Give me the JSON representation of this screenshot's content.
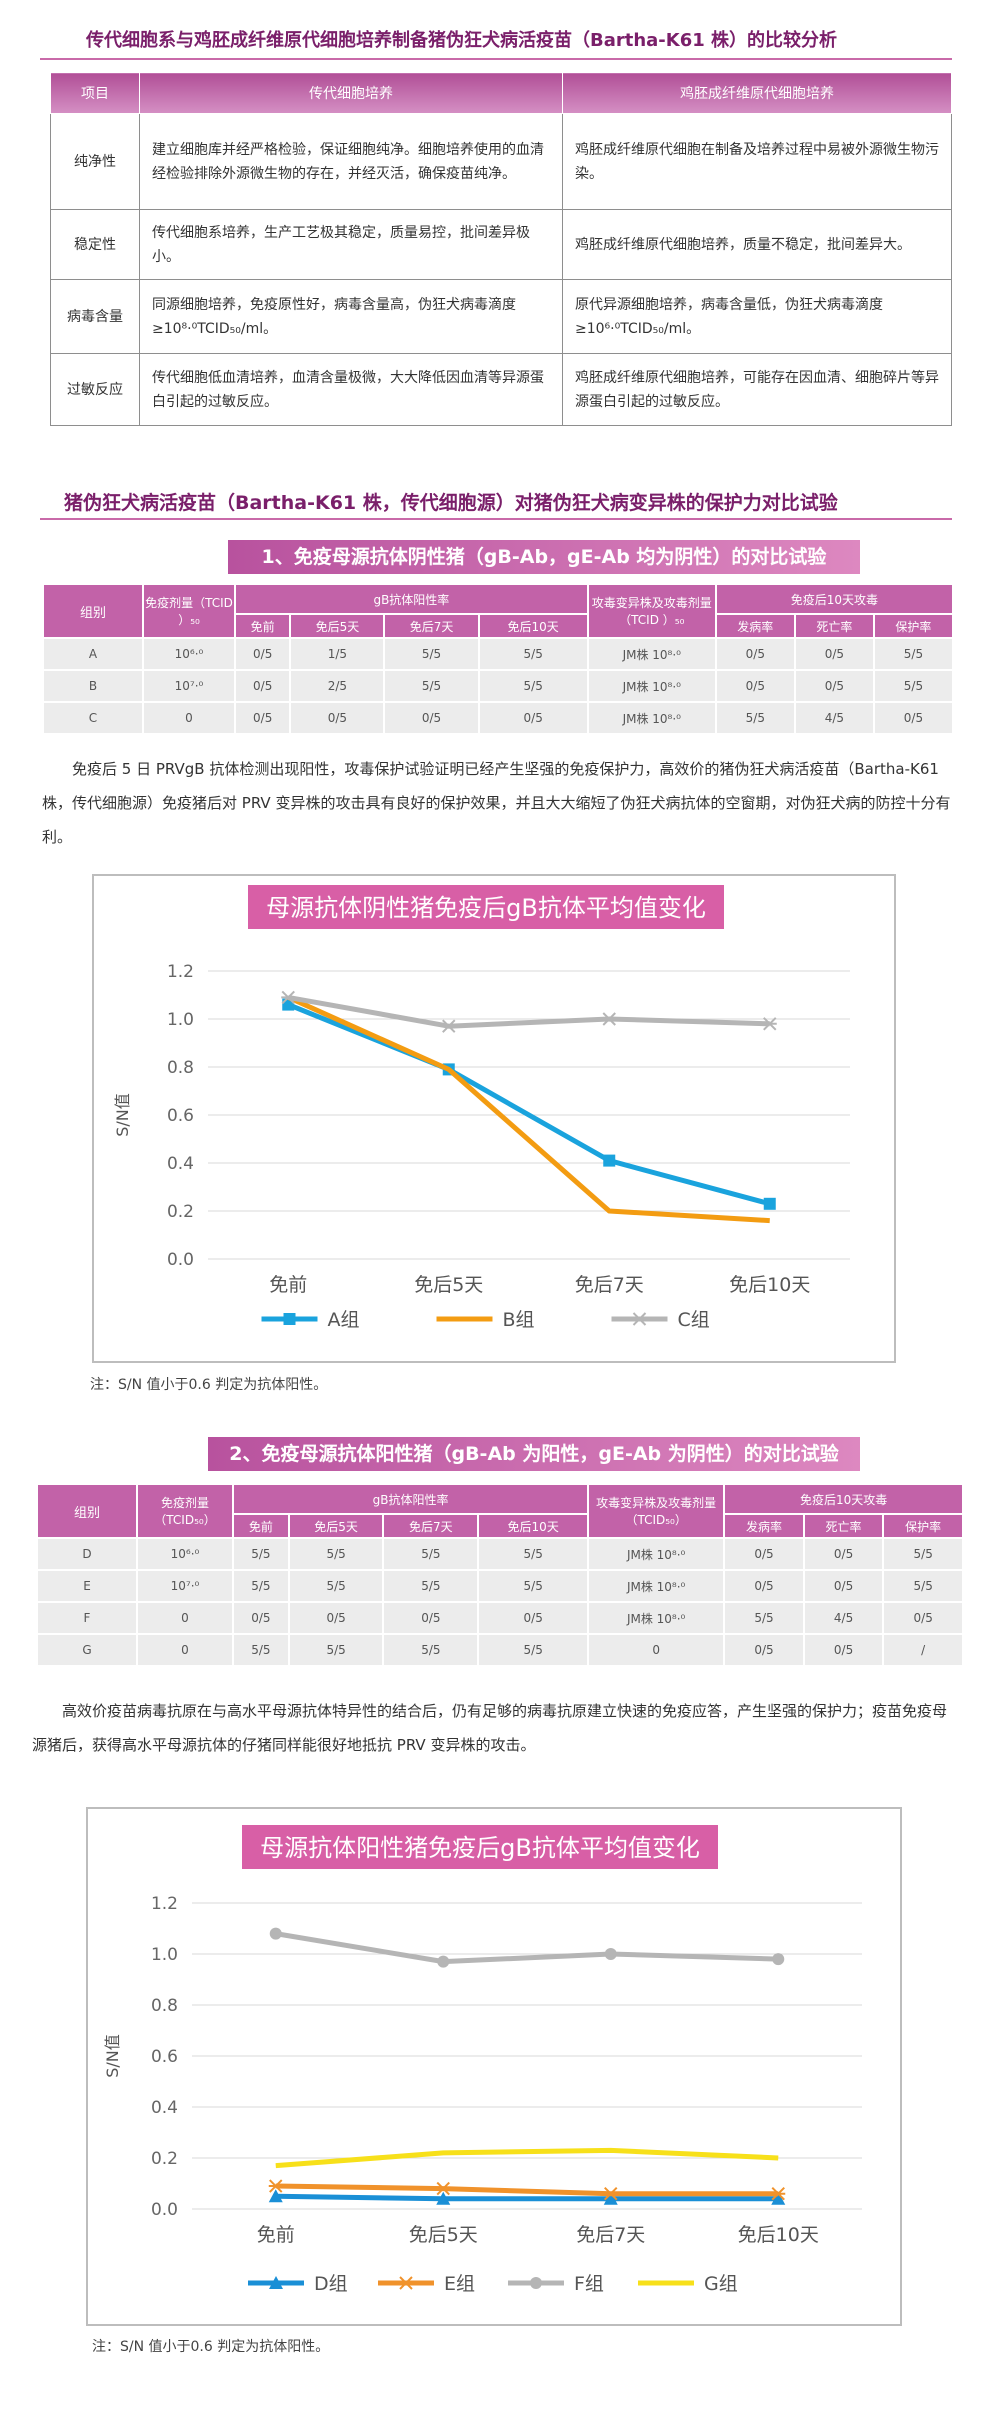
{
  "section1": {
    "title": "传代细胞系与鸡胚成纤维原代细胞培养制备猪伪狂犬病活疫苗（Bartha-K61 株）的比较分析",
    "headers": [
      "项目",
      "传代细胞培养",
      "鸡胚成纤维原代细胞培养"
    ],
    "rows": [
      {
        "item": "纯净性",
        "a": "建立细胞库并经严格检验，保证细胞纯净。细胞培养使用的血清经检验排除外源微生物的存在，并经灭活，确保疫苗纯净。",
        "b": "鸡胚成纤维原代细胞在制备及培养过程中易被外源微生物污染。"
      },
      {
        "item": "稳定性",
        "a": "传代细胞系培养，生产工艺极其稳定，质量易控，批间差异极小。",
        "b": "鸡胚成纤维原代细胞培养，质量不稳定，批间差异大。"
      },
      {
        "item": "病毒含量",
        "a": "同源细胞培养，免疫原性好，病毒含量高，伪狂犬病毒滴度≥10⁸·⁰TCID₅₀/ml。",
        "b": "原代异源细胞培养，病毒含量低，伪狂犬病毒滴度≥10⁶·⁰TCID₅₀/ml。"
      },
      {
        "item": "过敏反应",
        "a": "传代细胞低血清培养，血清含量极微，大大降低因血清等异源蛋白引起的过敏反应。",
        "b": "鸡胚成纤维原代细胞培养，可能存在因血清、细胞碎片等异源蛋白引起的过敏反应。"
      }
    ]
  },
  "section2": {
    "title": "猪伪狂犬病活疫苗（Bartha-K61 株，传代细胞源）对猪伪狂犬病变异株的保护力对比试验"
  },
  "trial1": {
    "band": "1、免疫母源抗体阴性猪（gB-Ab，gE-Ab 均为阴性）的对比试验",
    "h_group": "组别",
    "h_dose": "免疫剂量（TCID ）₅₀",
    "h_gb": "gB抗体阳性率",
    "gb_cols": [
      "免前",
      "免后5天",
      "免后7天",
      "免后10天"
    ],
    "h_challenge": "攻毒变异株及攻毒剂量（TCID ）₅₀",
    "h_after": "免疫后10天攻毒",
    "after_cols": [
      "发病率",
      "死亡率",
      "保护率"
    ],
    "rows": [
      [
        "A",
        "10⁶·⁰",
        "0/5",
        "1/5",
        "5/5",
        "5/5",
        "JM株 10⁸·⁰",
        "0/5",
        "0/5",
        "5/5"
      ],
      [
        "B",
        "10⁷·⁰",
        "0/5",
        "2/5",
        "5/5",
        "5/5",
        "JM株 10⁸·⁰",
        "0/5",
        "0/5",
        "5/5"
      ],
      [
        "C",
        "0",
        "0/5",
        "0/5",
        "0/5",
        "0/5",
        "JM株 10⁸·⁰",
        "5/5",
        "4/5",
        "0/5"
      ]
    ],
    "paragraph": "免疫后 5 日 PRVgB 抗体检测出现阳性，攻毒保护试验证明已经产生坚强的免疫保护力，高效价的猪伪狂犬病活疫苗（Bartha-K61 株，传代细胞源）免疫猪后对 PRV 变异株的攻击具有良好的保护效果，并且大大缩短了伪狂犬病抗体的空窗期，对伪狂犬病的防控十分有利。",
    "note": "注：S/N 值小于0.6 判定为抗体阳性。"
  },
  "trial2": {
    "band": "2、免疫母源抗体阳性猪（gB-Ab 为阳性，gE-Ab 为阴性）的对比试验",
    "h_group": "组别",
    "h_dose": "免疫剂量（TCID₅₀）",
    "h_gb": "gB抗体阳性率",
    "gb_cols": [
      "免前",
      "免后5天",
      "免后7天",
      "免后10天"
    ],
    "h_challenge": "攻毒变异株及攻毒剂量（TCID₅₀）",
    "h_after": "免疫后10天攻毒",
    "after_cols": [
      "发病率",
      "死亡率",
      "保护率"
    ],
    "rows": [
      [
        "D",
        "10⁶·⁰",
        "5/5",
        "5/5",
        "5/5",
        "5/5",
        "JM株 10⁸·⁰",
        "0/5",
        "0/5",
        "5/5"
      ],
      [
        "E",
        "10⁷·⁰",
        "5/5",
        "5/5",
        "5/5",
        "5/5",
        "JM株 10⁸·⁰",
        "0/5",
        "0/5",
        "5/5"
      ],
      [
        "F",
        "0",
        "0/5",
        "0/5",
        "0/5",
        "0/5",
        "JM株 10⁸·⁰",
        "5/5",
        "4/5",
        "0/5"
      ],
      [
        "G",
        "0",
        "5/5",
        "5/5",
        "5/5",
        "5/5",
        "0",
        "0/5",
        "0/5",
        "/"
      ]
    ],
    "paragraph": "高效价疫苗病毒抗原在与高水平母源抗体特异性的结合后，仍有足够的病毒抗原建立快速的免疫应答，产生坚强的保护力；疫苗免疫母源猪后，获得高水平母源抗体的仔猪同样能很好地抵抗 PRV 变异株的攻击。",
    "note": "注：S/N 值小于0.6 判定为抗体阳性。"
  },
  "chart_data": [
    {
      "type": "line",
      "title": "母源抗体阴性猪免疫后gB抗体平均值变化",
      "ylabel": "S/N值",
      "categories": [
        "免前",
        "免后5天",
        "免后7天",
        "免后10天"
      ],
      "ylim": [
        0.0,
        1.2
      ],
      "yticks": [
        "0.0",
        "0.2",
        "0.4",
        "0.6",
        "0.8",
        "1.0",
        "1.2"
      ],
      "grid": true,
      "legend": "bottom",
      "series": [
        {
          "name": "A组",
          "values": [
            1.06,
            0.79,
            0.41,
            0.23
          ],
          "color": "#1aa3dd",
          "marker": "square"
        },
        {
          "name": "B组",
          "values": [
            1.09,
            0.79,
            0.2,
            0.16
          ],
          "color": "#f39c12",
          "marker": "line"
        },
        {
          "name": "C组",
          "values": [
            1.09,
            0.97,
            1.0,
            0.98
          ],
          "color": "#b5b5b5",
          "marker": "star"
        }
      ]
    },
    {
      "type": "line",
      "title": "母源抗体阳性猪免疫后gB抗体平均值变化",
      "ylabel": "S/N值",
      "categories": [
        "免前",
        "免后5天",
        "免后7天",
        "免后10天"
      ],
      "ylim": [
        0.0,
        1.2
      ],
      "yticks": [
        "0.0",
        "0.2",
        "0.4",
        "0.6",
        "0.8",
        "1.0",
        "1.2"
      ],
      "grid": true,
      "legend": "bottom",
      "series": [
        {
          "name": "D组",
          "values": [
            0.05,
            0.04,
            0.04,
            0.04
          ],
          "color": "#1a8fd6",
          "marker": "triangle"
        },
        {
          "name": "E组",
          "values": [
            0.09,
            0.08,
            0.06,
            0.06
          ],
          "color": "#f0922b",
          "marker": "star"
        },
        {
          "name": "F组",
          "values": [
            1.08,
            0.97,
            1.0,
            0.98
          ],
          "color": "#b5b5b5",
          "marker": "circle"
        },
        {
          "name": "G组",
          "values": [
            0.17,
            0.22,
            0.23,
            0.2
          ],
          "color": "#f7e01a",
          "marker": "line"
        }
      ]
    }
  ]
}
